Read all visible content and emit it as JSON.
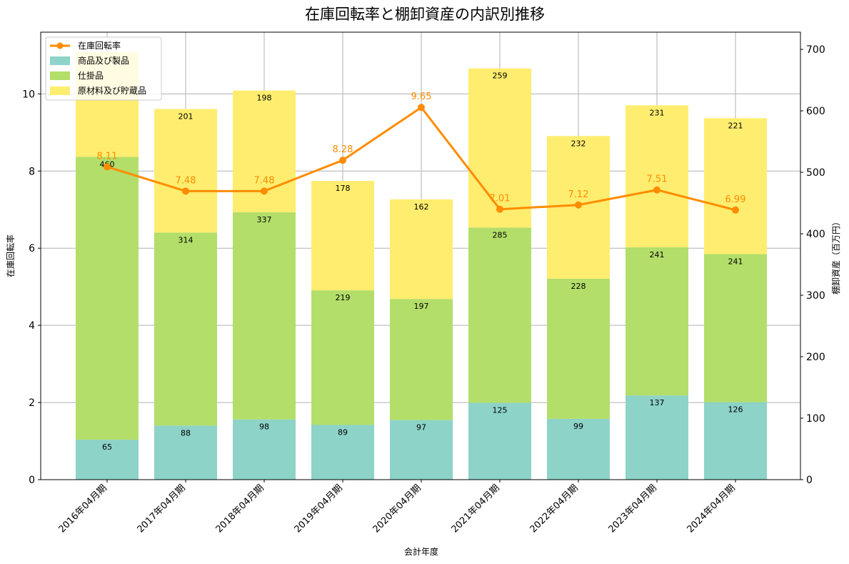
{
  "chart_data": {
    "type": "bar",
    "title": "在庫回転率と棚卸資産の内訳別推移",
    "xlabel": "会計年度",
    "ylabel_left": "在庫回転率",
    "ylabel_right": "棚卸資産（百万円）",
    "categories": [
      "2016年04月期",
      "2017年04月期",
      "2018年04月期",
      "2019年04月期",
      "2020年04月期",
      "2021年04月期",
      "2022年04月期",
      "2023年04月期",
      "2024年04月期"
    ],
    "series": [
      {
        "name": "商品及び製品",
        "kind": "stacked-bar",
        "axis": "right",
        "color": "#8dd3c7",
        "values": [
          65,
          88,
          98,
          89,
          97,
          125,
          99,
          137,
          126
        ]
      },
      {
        "name": "仕掛品",
        "kind": "stacked-bar",
        "axis": "right",
        "color": "#b3de69",
        "values": [
          460,
          314,
          337,
          219,
          197,
          285,
          228,
          241,
          241
        ]
      },
      {
        "name": "原材料及び貯蔵品",
        "kind": "stacked-bar",
        "axis": "right",
        "color": "#ffed6f",
        "values": [
          null,
          201,
          198,
          178,
          162,
          259,
          232,
          231,
          221
        ]
      },
      {
        "name": "在庫回転率",
        "kind": "line",
        "axis": "left",
        "color": "#ff8c00",
        "values": [
          8.11,
          7.48,
          7.48,
          8.28,
          9.65,
          7.01,
          7.12,
          7.51,
          6.99
        ]
      }
    ],
    "ylim_left": [
      0,
      11.6
    ],
    "yticks_left": [
      "0",
      "2",
      "4",
      "6",
      "8",
      "10"
    ],
    "ylim_right": [
      0,
      728
    ],
    "yticks_right": [
      "0",
      "100",
      "200",
      "300",
      "400",
      "500",
      "600",
      "700"
    ],
    "grid": true,
    "legend_position": "top-left"
  }
}
